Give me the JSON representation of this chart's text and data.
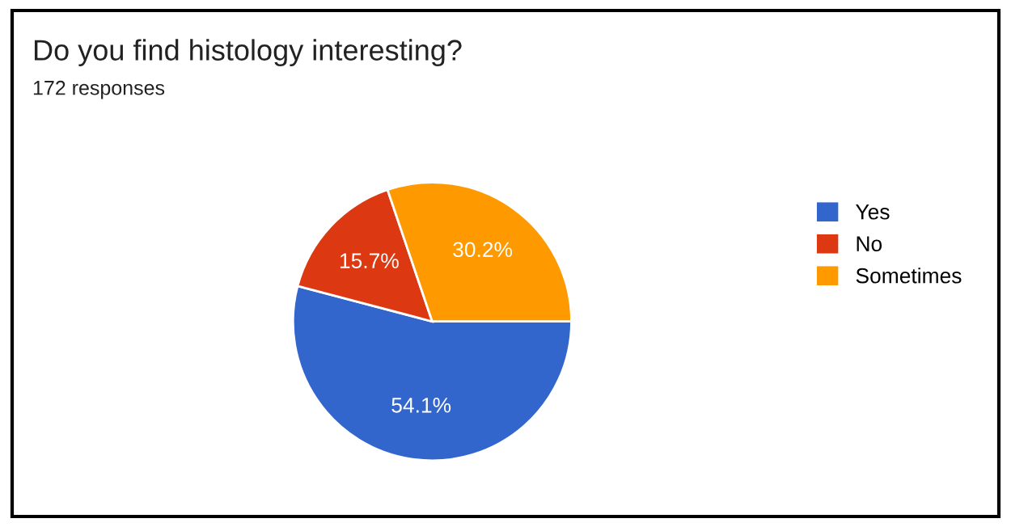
{
  "chart_data": {
    "type": "pie",
    "title": "Do you find histology interesting?",
    "subtitle": "172 responses",
    "categories": [
      "Yes",
      "No",
      "Sometimes"
    ],
    "values": [
      54.1,
      15.7,
      30.2
    ],
    "colors": [
      "#3366cc",
      "#dc3912",
      "#ff9900"
    ],
    "value_labels": [
      "54.1%",
      "15.7%",
      "30.2%"
    ],
    "legend": "right"
  }
}
